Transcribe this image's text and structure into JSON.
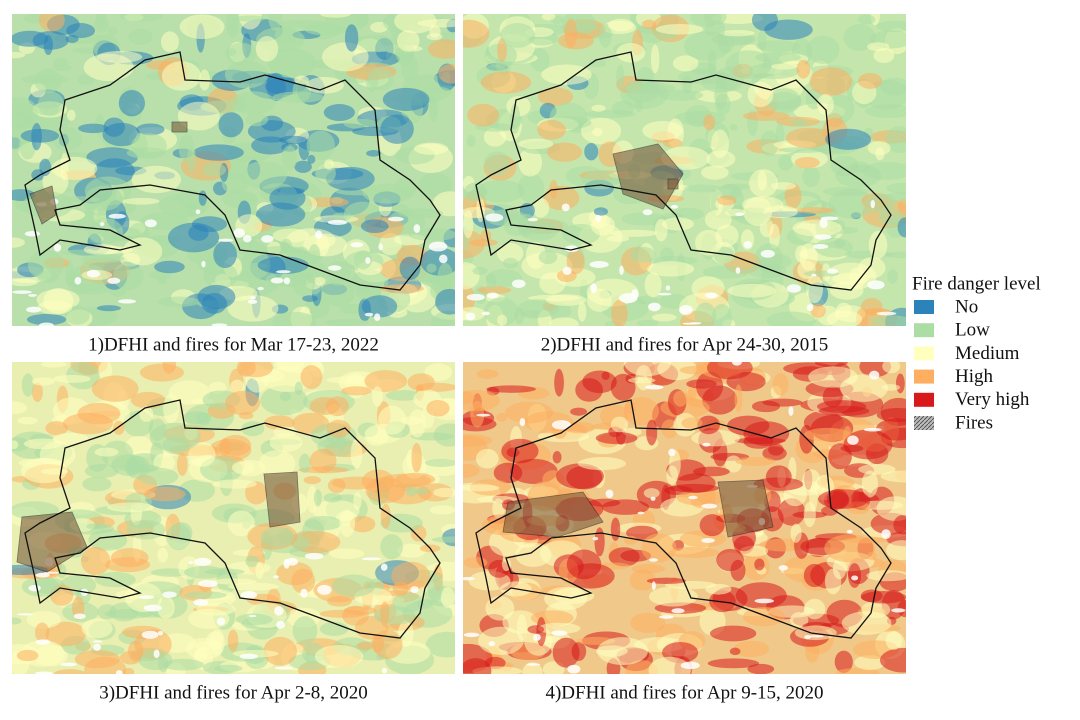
{
  "panels": [
    {
      "caption": "1)DFHI and fires for Mar 17-23, 2022"
    },
    {
      "caption": "2)DFHI and fires for Apr 24-30, 2015"
    },
    {
      "caption": "3)DFHI and fires for Apr 2-8, 2020"
    },
    {
      "caption": "4)DFHI and fires for Apr 9-15, 2020"
    }
  ],
  "legend": {
    "title": "Fire danger level",
    "items": [
      {
        "label": "No",
        "color": "#2b83ba"
      },
      {
        "label": "Low",
        "color": "#abdda4"
      },
      {
        "label": "Medium",
        "color": "#ffffbf"
      },
      {
        "label": "High",
        "color": "#fdae61"
      },
      {
        "label": "Very high",
        "color": "#d7191c"
      },
      {
        "label": "Fires"
      }
    ]
  }
}
